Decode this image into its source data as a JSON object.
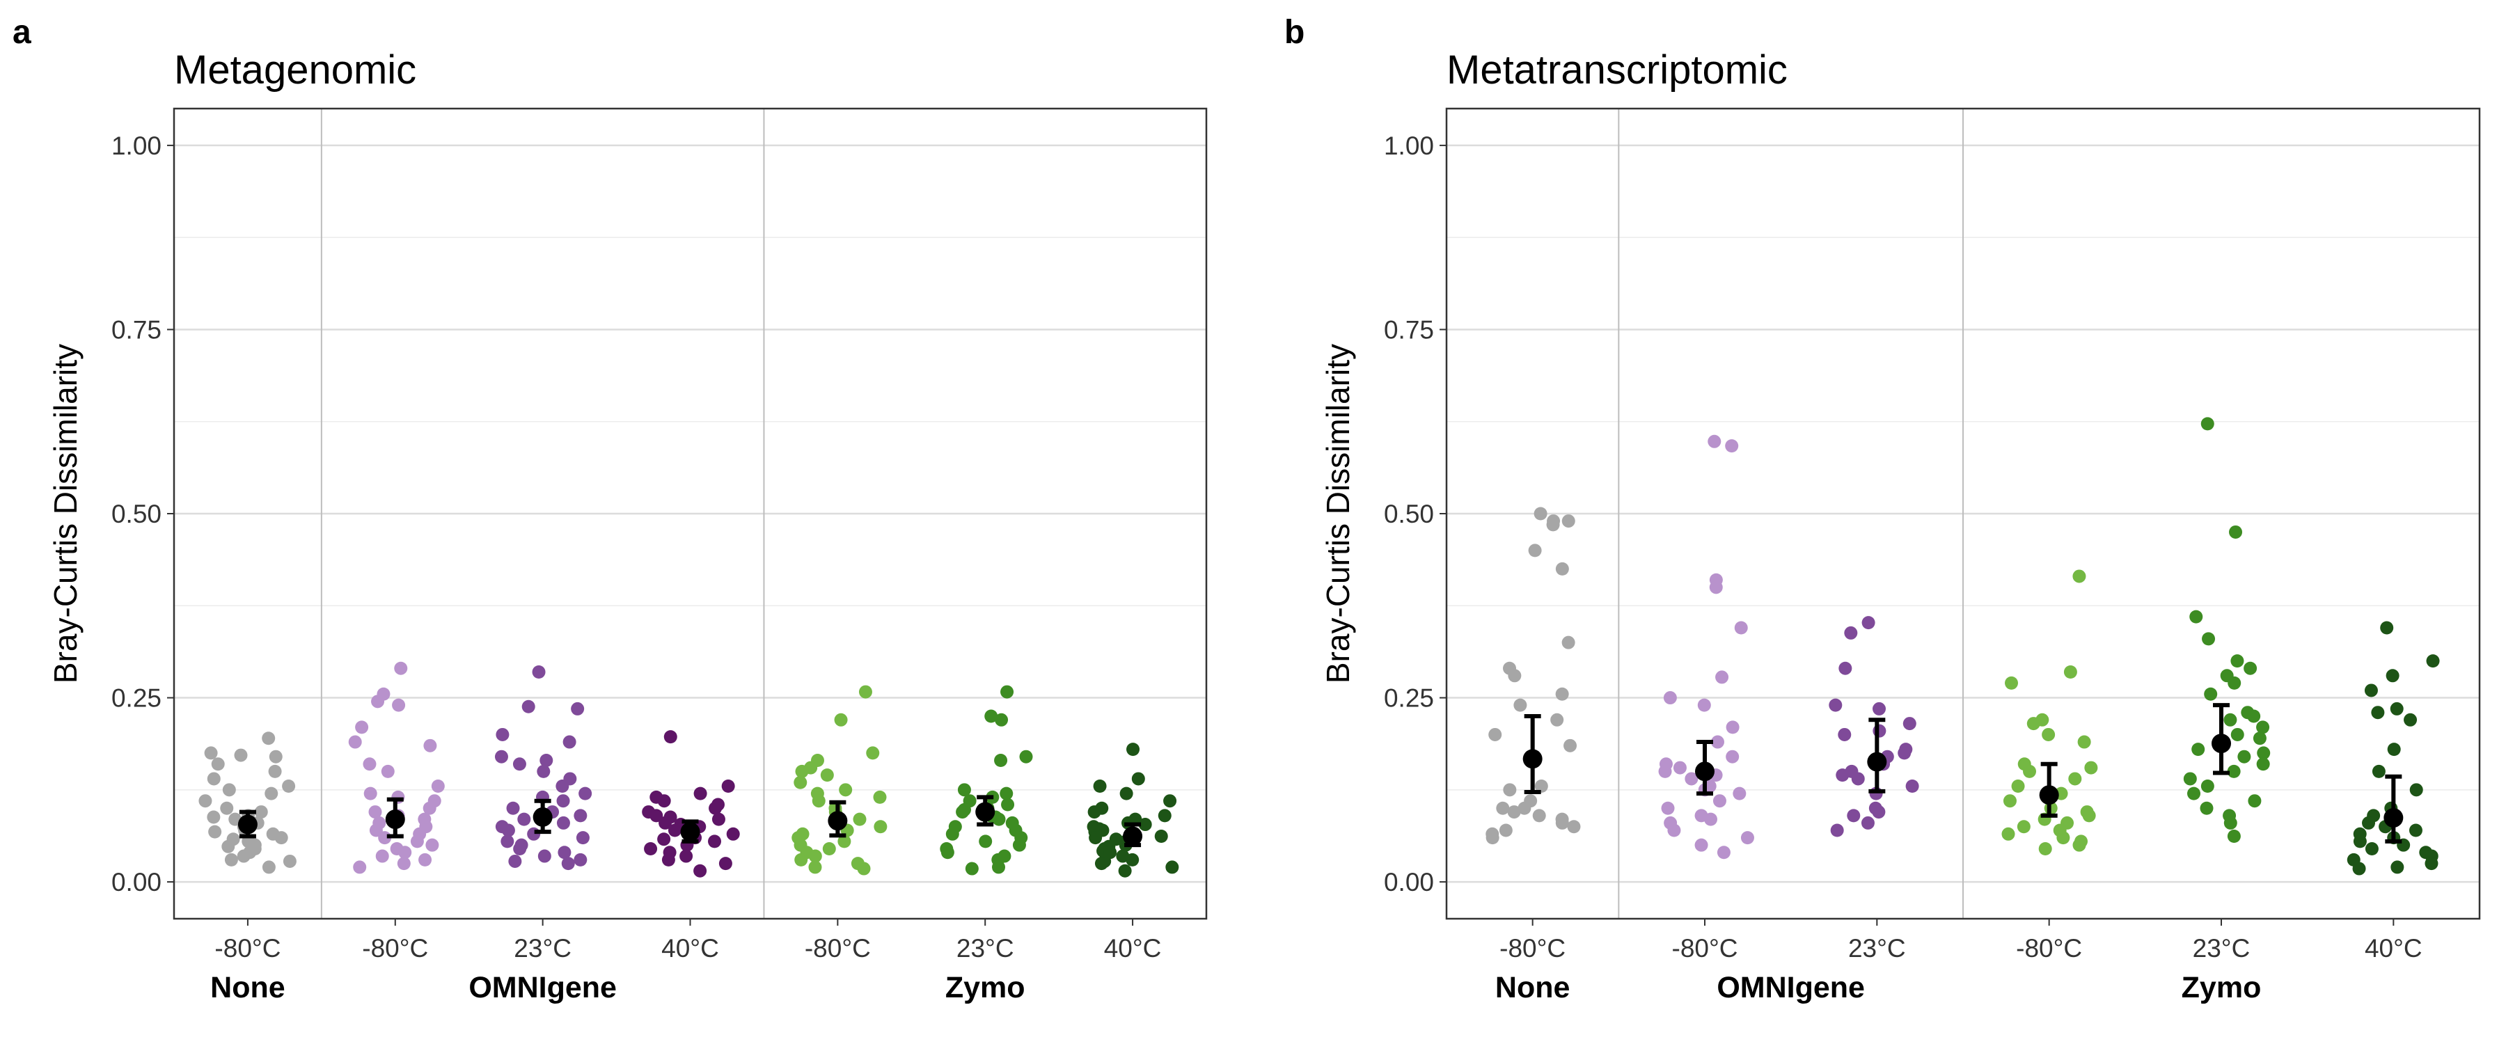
{
  "chart_data": [
    {
      "type": "scatter",
      "panel": "a",
      "title": "Metagenomic",
      "ylabel": "Bray-Curtis Dissimilarity",
      "xlabel": "",
      "ylim": [
        -0.05,
        1.05
      ],
      "yticks": [
        "0.00",
        "0.25",
        "0.50",
        "0.75",
        "1.00"
      ],
      "ytick_values": [
        0,
        0.25,
        0.5,
        0.75,
        1.0
      ],
      "grid": true,
      "group_dividers_after": [
        1,
        4
      ],
      "groups": [
        {
          "label": "None",
          "span": [
            1,
            1
          ]
        },
        {
          "label": "OMNIgene",
          "span": [
            2,
            4
          ]
        },
        {
          "label": "Zymo",
          "span": [
            5,
            7
          ]
        }
      ],
      "series": [
        {
          "x_label": "-80°C",
          "group": "None",
          "color": "#a6a6a6",
          "mean": 0.078,
          "err": [
            0.062,
            0.095
          ],
          "points": [
            0.195,
            0.175,
            0.172,
            0.17,
            0.16,
            0.15,
            0.14,
            0.13,
            0.125,
            0.12,
            0.11,
            0.1,
            0.095,
            0.09,
            0.088,
            0.085,
            0.08,
            0.075,
            0.07,
            0.068,
            0.065,
            0.06,
            0.058,
            0.055,
            0.05,
            0.048,
            0.045,
            0.04,
            0.035,
            0.03,
            0.028,
            0.02
          ]
        },
        {
          "x_label": "-80°C",
          "group": "OMNIgene",
          "color": "#b892cc",
          "mean": 0.085,
          "err": [
            0.062,
            0.112
          ],
          "points": [
            0.29,
            0.255,
            0.245,
            0.24,
            0.21,
            0.19,
            0.185,
            0.16,
            0.15,
            0.13,
            0.12,
            0.115,
            0.11,
            0.1,
            0.095,
            0.09,
            0.085,
            0.08,
            0.075,
            0.07,
            0.065,
            0.06,
            0.055,
            0.05,
            0.045,
            0.04,
            0.035,
            0.03,
            0.025,
            0.02
          ]
        },
        {
          "x_label": "23°C",
          "group": "OMNIgene",
          "color": "#7f4a99",
          "mean": 0.088,
          "err": [
            0.068,
            0.11
          ],
          "points": [
            0.285,
            0.238,
            0.235,
            0.2,
            0.19,
            0.17,
            0.165,
            0.16,
            0.15,
            0.14,
            0.13,
            0.12,
            0.115,
            0.11,
            0.1,
            0.095,
            0.09,
            0.085,
            0.08,
            0.075,
            0.07,
            0.065,
            0.06,
            0.055,
            0.05,
            0.045,
            0.04,
            0.035,
            0.03,
            0.028,
            0.025
          ]
        },
        {
          "x_label": "40°C",
          "group": "OMNIgene",
          "color": "#5e1566",
          "mean": 0.068,
          "err": [
            0.055,
            0.082
          ],
          "points": [
            0.197,
            0.13,
            0.12,
            0.115,
            0.11,
            0.105,
            0.1,
            0.095,
            0.09,
            0.088,
            0.085,
            0.08,
            0.078,
            0.075,
            0.072,
            0.07,
            0.065,
            0.06,
            0.058,
            0.055,
            0.05,
            0.045,
            0.04,
            0.035,
            0.03,
            0.025,
            0.015
          ]
        },
        {
          "x_label": "-80°C",
          "group": "Zymo",
          "color": "#74b843",
          "mean": 0.083,
          "err": [
            0.063,
            0.108
          ],
          "points": [
            0.258,
            0.22,
            0.175,
            0.165,
            0.155,
            0.15,
            0.145,
            0.135,
            0.125,
            0.12,
            0.115,
            0.11,
            0.1,
            0.095,
            0.085,
            0.08,
            0.075,
            0.07,
            0.065,
            0.06,
            0.055,
            0.05,
            0.045,
            0.04,
            0.035,
            0.03,
            0.025,
            0.02,
            0.018
          ]
        },
        {
          "x_label": "23°C",
          "group": "Zymo",
          "color": "#3d8c22",
          "mean": 0.095,
          "err": [
            0.078,
            0.115
          ],
          "points": [
            0.258,
            0.225,
            0.22,
            0.17,
            0.165,
            0.125,
            0.12,
            0.115,
            0.11,
            0.105,
            0.1,
            0.098,
            0.095,
            0.09,
            0.088,
            0.085,
            0.08,
            0.075,
            0.07,
            0.065,
            0.06,
            0.055,
            0.05,
            0.045,
            0.04,
            0.035,
            0.03,
            0.02,
            0.018
          ]
        },
        {
          "x_label": "40°C",
          "group": "Zymo",
          "color": "#1d5416",
          "mean": 0.062,
          "err": [
            0.05,
            0.078
          ],
          "points": [
            0.18,
            0.14,
            0.13,
            0.12,
            0.11,
            0.1,
            0.095,
            0.09,
            0.085,
            0.08,
            0.078,
            0.075,
            0.072,
            0.07,
            0.068,
            0.065,
            0.062,
            0.06,
            0.058,
            0.055,
            0.05,
            0.048,
            0.045,
            0.042,
            0.04,
            0.035,
            0.03,
            0.028,
            0.025,
            0.02,
            0.015
          ]
        }
      ]
    },
    {
      "type": "scatter",
      "panel": "b",
      "title": "Metatranscriptomic",
      "ylabel": "Bray-Curtis Dissimilarity",
      "xlabel": "",
      "ylim": [
        -0.05,
        1.05
      ],
      "yticks": [
        "0.00",
        "0.25",
        "0.50",
        "0.75",
        "1.00"
      ],
      "ytick_values": [
        0,
        0.25,
        0.5,
        0.75,
        1.0
      ],
      "grid": true,
      "group_dividers_after": [
        1,
        3
      ],
      "groups": [
        {
          "label": "None",
          "span": [
            1,
            1
          ]
        },
        {
          "label": "OMNIgene",
          "span": [
            2,
            3
          ]
        },
        {
          "label": "Zymo",
          "span": [
            4,
            6
          ]
        }
      ],
      "series": [
        {
          "x_label": "-80°C",
          "group": "None",
          "color": "#a6a6a6",
          "mean": 0.167,
          "err": [
            0.122,
            0.225
          ],
          "points": [
            0.5,
            0.49,
            0.49,
            0.485,
            0.45,
            0.425,
            0.325,
            0.29,
            0.28,
            0.255,
            0.24,
            0.22,
            0.2,
            0.185,
            0.13,
            0.125,
            0.11,
            0.1,
            0.1,
            0.095,
            0.09,
            0.085,
            0.08,
            0.075,
            0.07,
            0.065,
            0.06
          ]
        },
        {
          "x_label": "-80°C",
          "group": "OMNIgene",
          "color": "#b892cc",
          "mean": 0.15,
          "err": [
            0.12,
            0.19
          ],
          "points": [
            0.598,
            0.592,
            0.41,
            0.4,
            0.345,
            0.278,
            0.25,
            0.24,
            0.21,
            0.19,
            0.17,
            0.16,
            0.155,
            0.15,
            0.145,
            0.14,
            0.13,
            0.125,
            0.12,
            0.11,
            0.1,
            0.09,
            0.085,
            0.08,
            0.07,
            0.06,
            0.05,
            0.04
          ]
        },
        {
          "x_label": "23°C",
          "group": "OMNIgene",
          "color": "#7f4a99",
          "mean": 0.163,
          "err": [
            0.123,
            0.22
          ],
          "points": [
            0.352,
            0.338,
            0.29,
            0.24,
            0.235,
            0.215,
            0.205,
            0.2,
            0.18,
            0.175,
            0.17,
            0.16,
            0.15,
            0.145,
            0.14,
            0.13,
            0.12,
            0.1,
            0.095,
            0.09,
            0.08,
            0.07
          ]
        },
        {
          "x_label": "-80°C",
          "group": "Zymo",
          "color": "#74b843",
          "mean": 0.118,
          "err": [
            0.09,
            0.16
          ],
          "points": [
            0.415,
            0.285,
            0.27,
            0.22,
            0.215,
            0.2,
            0.19,
            0.16,
            0.155,
            0.15,
            0.14,
            0.13,
            0.12,
            0.11,
            0.1,
            0.095,
            0.09,
            0.085,
            0.08,
            0.075,
            0.07,
            0.065,
            0.06,
            0.055,
            0.05,
            0.045
          ]
        },
        {
          "x_label": "23°C",
          "group": "Zymo",
          "color": "#3d8c22",
          "mean": 0.188,
          "err": [
            0.148,
            0.24
          ],
          "points": [
            0.622,
            0.475,
            0.36,
            0.33,
            0.3,
            0.29,
            0.28,
            0.27,
            0.255,
            0.23,
            0.225,
            0.22,
            0.21,
            0.2,
            0.195,
            0.18,
            0.175,
            0.17,
            0.16,
            0.15,
            0.14,
            0.13,
            0.12,
            0.11,
            0.1,
            0.09,
            0.08,
            0.062
          ]
        },
        {
          "x_label": "40°C",
          "group": "Zymo",
          "color": "#1d5416",
          "mean": 0.087,
          "err": [
            0.055,
            0.143
          ],
          "points": [
            0.345,
            0.3,
            0.28,
            0.26,
            0.235,
            0.23,
            0.22,
            0.18,
            0.15,
            0.125,
            0.1,
            0.09,
            0.08,
            0.075,
            0.07,
            0.065,
            0.06,
            0.055,
            0.05,
            0.045,
            0.04,
            0.035,
            0.03,
            0.025,
            0.02,
            0.018
          ]
        }
      ]
    }
  ]
}
